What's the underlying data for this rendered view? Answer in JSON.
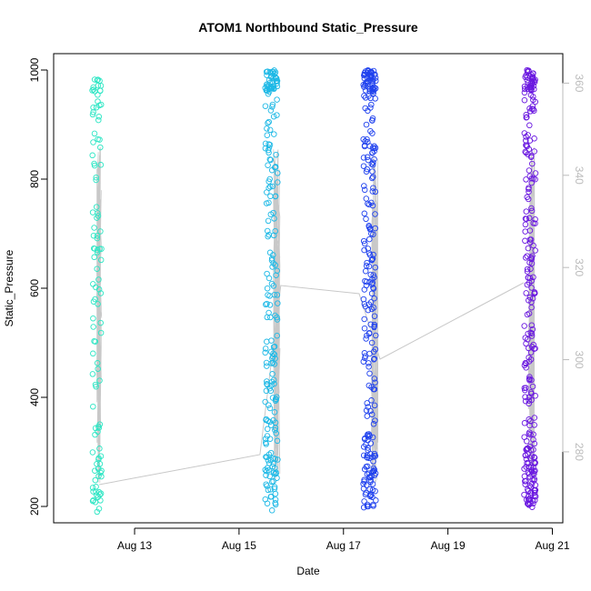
{
  "chart_data": {
    "type": "scatter",
    "title": "ATOM1 Northbound Static_Pressure",
    "xlabel": "Date",
    "ylabel": "Static_Pressure",
    "xlim": [
      11.45,
      21.2
    ],
    "ylim": [
      170,
      1030
    ],
    "x_ticks": [
      {
        "value": 13,
        "label": "Aug 13"
      },
      {
        "value": 15,
        "label": "Aug 15"
      },
      {
        "value": 17,
        "label": "Aug 17"
      },
      {
        "value": 19,
        "label": "Aug 19"
      },
      {
        "value": 21,
        "label": "Aug 21"
      }
    ],
    "y_ticks": [
      200,
      400,
      600,
      800,
      1000
    ],
    "y2_lim": [
      264.6,
      366.4
    ],
    "y2_ticks": [
      280,
      300,
      320,
      340,
      360
    ],
    "line_color": "#c8c8c8",
    "y2_color": "#bbbbbb",
    "groups": [
      {
        "name": "Aug 12",
        "x_center": 12.28,
        "x_spread": 0.09,
        "color": "#2de6c4",
        "count": 110,
        "line_center": 12.32
      },
      {
        "name": "Aug 15",
        "x_center": 15.62,
        "x_spread": 0.12,
        "color": "#1fb9e6",
        "count": 220,
        "line_center": 15.72
      },
      {
        "name": "Aug 17",
        "x_center": 17.5,
        "x_spread": 0.12,
        "color": "#2042ee",
        "count": 260,
        "line_center": 17.6
      },
      {
        "name": "Aug 20",
        "x_center": 20.57,
        "x_spread": 0.11,
        "color": "#6a18e0",
        "count": 260,
        "line_center": 20.6
      }
    ],
    "trend_line": {
      "x": [
        12.32,
        15.4,
        15.8,
        17.3,
        17.7,
        20.45
      ],
      "y": [
        240,
        295,
        605,
        590,
        470,
        610
      ]
    }
  }
}
